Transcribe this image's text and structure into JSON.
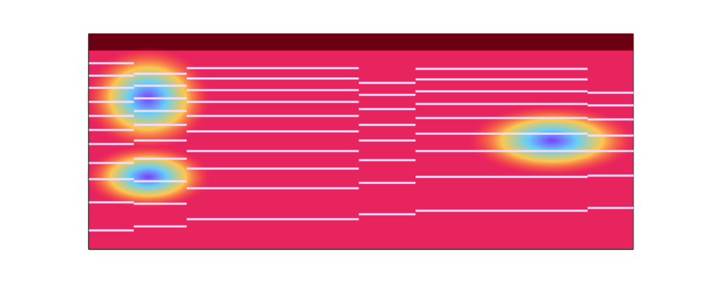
{
  "chart_data": {
    "type": "spectrogram",
    "xlim": [
      0,
      100
    ],
    "ylim": [
      0,
      100
    ],
    "tick_labels": false,
    "grid": false,
    "color": "#f4dcff",
    "notes": [
      {
        "x": [
          0,
          8.3
        ],
        "harmonics": [
          8.8,
          21.8,
          32.6,
          40.1,
          48.9,
          55.4,
          61.9,
          68.4,
          74.9,
          80.5,
          86.3
        ]
      },
      {
        "x": [
          8.3,
          18.0
        ],
        "harmonics": [
          10.7,
          21.2,
          31.6,
          42.0,
          50.5,
          57.7,
          64.2,
          70.0,
          75.9,
          81.4
        ]
      },
      {
        "x": [
          18.0,
          49.6
        ],
        "harmonics": [
          14.0,
          28.3,
          37.5,
          45.6,
          54.7,
          61.9,
          68.4,
          73.9,
          79.2,
          84.0
        ]
      },
      {
        "x": [
          49.6,
          60.0
        ],
        "harmonics": [
          16.3,
          30.9,
          41.4,
          50.5,
          57.7,
          65.1,
          71.7,
          77.2
        ]
      },
      {
        "x": [
          60.0,
          91.6
        ],
        "harmonics": [
          17.9,
          33.6,
          45.6,
          53.7,
          60.9,
          67.4,
          73.3,
          78.8,
          83.7
        ]
      },
      {
        "x": [
          91.6,
          100
        ],
        "harmonics": [
          19.2,
          34.2,
          45.6,
          52.8,
          60.3,
          66.8,
          72.6
        ]
      }
    ],
    "highlights": [
      {
        "x": 10.9,
        "y": 70.0,
        "x_radius": 11.6,
        "y_radius": 24.0
      },
      {
        "x": 10.9,
        "y": 33.6,
        "x_radius": 11.6,
        "y_radius": 14.7
      },
      {
        "x": 85.1,
        "y": 50.5,
        "x_radius": 15.5,
        "y_radius": 16.3
      }
    ],
    "silence_band": {
      "y": [
        92.2,
        100
      ]
    }
  }
}
